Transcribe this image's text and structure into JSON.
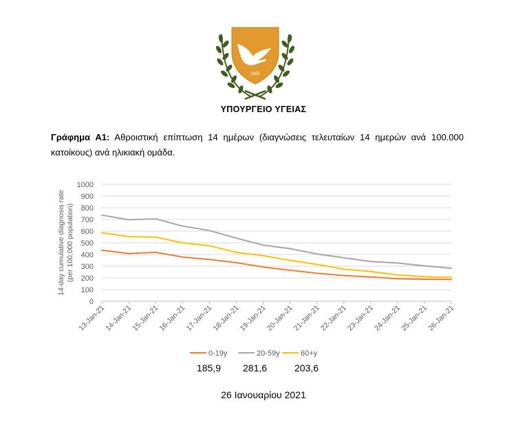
{
  "header": {
    "emblem_year": "1960",
    "ministry": "ΥΠΟΥΡΓΕΙΟ ΥΓΕΙΑΣ"
  },
  "caption": {
    "label": "Γράφημα Α1:",
    "text": " Αθροιστική επίπτωση 14 ημέρων (διαγνώσεις τελευταίων 14 ημερών ανά 100.000 κατοίκους) ανά ηλικιακή ομάδα."
  },
  "chart_data": {
    "type": "line",
    "x": [
      "13-Jan-21",
      "14-Jan-21",
      "15-Jan-21",
      "16-Jan-21",
      "17-Jan-21",
      "18-Jan-21",
      "19-Jan-21",
      "20-Jan-21",
      "21-Jan-21",
      "22-Jan-21",
      "23-Jan-21",
      "24-Jan-21",
      "25-Jan-21",
      "26-Jan-21"
    ],
    "ylabel": "14-day cumulative diagnosis rate\n(per 100,000 population)",
    "ylim": [
      0,
      1000
    ],
    "yticks": [
      0,
      100,
      200,
      300,
      400,
      500,
      600,
      700,
      800,
      900,
      1000
    ],
    "grid": true,
    "legend": "bottom",
    "series": [
      {
        "name": "0-19y",
        "color": "#ed7d31",
        "values": [
          437,
          408,
          418,
          378,
          357,
          330,
          293,
          265,
          240,
          220,
          208,
          192,
          188,
          185.9
        ]
      },
      {
        "name": "20-59y",
        "color": "#a5a5a5",
        "values": [
          737,
          697,
          705,
          643,
          605,
          540,
          480,
          450,
          405,
          372,
          340,
          327,
          303,
          281.6
        ]
      },
      {
        "name": "60+y",
        "color": "#ffc000",
        "values": [
          585,
          553,
          548,
          500,
          475,
          418,
          390,
          350,
          315,
          275,
          255,
          225,
          210,
          203.6
        ]
      }
    ]
  },
  "values_row": [
    "185,9",
    "281,6",
    "203,6"
  ],
  "footer": {
    "date": "26 Ιανουαρίου 2021"
  }
}
